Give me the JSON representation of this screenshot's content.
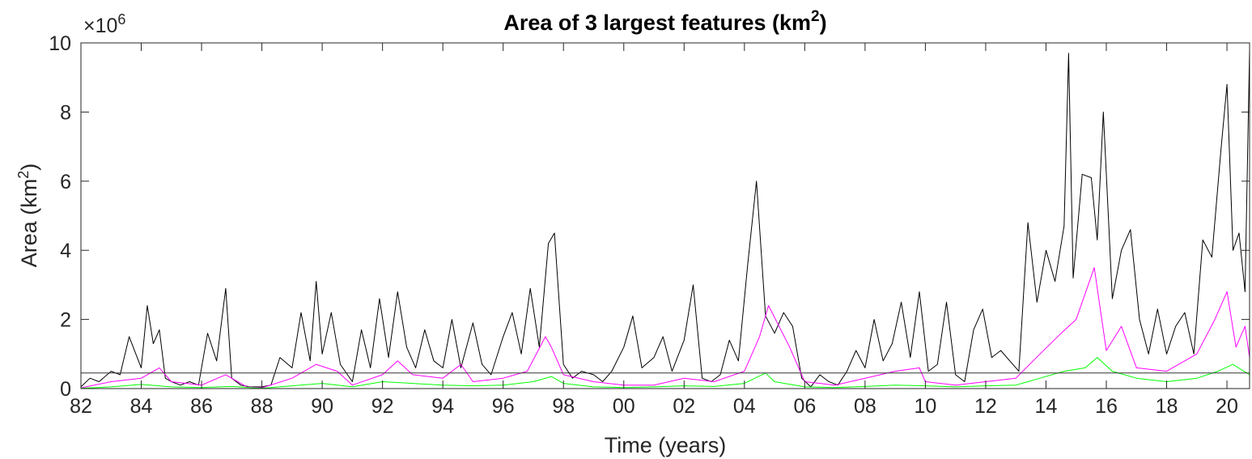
{
  "chart_data": {
    "type": "line",
    "title": "Area of 3 largest features (km",
    "title_superscript": "2",
    "title_suffix": ")",
    "xlabel": "Time (years)",
    "ylabel": "Area (km",
    "ylabel_superscript": "2",
    "ylabel_suffix": ")",
    "y_exponent_prefix": "×10",
    "y_exponent": "6",
    "xlim": [
      1982,
      2020.75
    ],
    "ylim": [
      0,
      10
    ],
    "x_ticks": [
      1982,
      1984,
      1986,
      1988,
      1990,
      1992,
      1994,
      1996,
      1998,
      2000,
      2002,
      2004,
      2006,
      2008,
      2010,
      2012,
      2014,
      2016,
      2018,
      2020
    ],
    "x_tick_labels": [
      "82",
      "84",
      "86",
      "88",
      "90",
      "92",
      "94",
      "96",
      "98",
      "00",
      "02",
      "04",
      "06",
      "08",
      "10",
      "12",
      "14",
      "16",
      "18",
      "20"
    ],
    "y_ticks": [
      0,
      2,
      4,
      6,
      8,
      10
    ],
    "y_tick_labels": [
      "0",
      "2",
      "4",
      "6",
      "8",
      "10"
    ],
    "threshold_line": 0.45,
    "grid": false,
    "legend": "none",
    "series": [
      {
        "color": "#000000",
        "x": [
          1982,
          1982.3,
          1982.6,
          1983,
          1983.3,
          1983.6,
          1984,
          1984.2,
          1984.4,
          1984.6,
          1984.8,
          1985,
          1985.3,
          1985.6,
          1985.9,
          1986.2,
          1986.5,
          1986.8,
          1987.0,
          1987.3,
          1987.6,
          1988,
          1988.3,
          1988.6,
          1989,
          1989.3,
          1989.6,
          1989.8,
          1990,
          1990.3,
          1990.6,
          1991,
          1991.3,
          1991.6,
          1991.9,
          1992.2,
          1992.5,
          1992.8,
          1993.1,
          1993.4,
          1993.7,
          1994,
          1994.3,
          1994.6,
          1995,
          1995.3,
          1995.6,
          1996,
          1996.3,
          1996.6,
          1996.9,
          1997.2,
          1997.5,
          1997.7,
          1998,
          1998.3,
          1998.6,
          1999,
          1999.3,
          1999.6,
          2000,
          2000.3,
          2000.6,
          2001,
          2001.3,
          2001.6,
          2002,
          2002.3,
          2002.6,
          2002.9,
          2003.2,
          2003.5,
          2003.8,
          2004.1,
          2004.4,
          2004.7,
          2005,
          2005.3,
          2005.6,
          2005.9,
          2006.2,
          2006.5,
          2006.8,
          2007.1,
          2007.4,
          2007.7,
          2008,
          2008.3,
          2008.6,
          2008.9,
          2009.2,
          2009.5,
          2009.8,
          2010.1,
          2010.4,
          2010.7,
          2011,
          2011.3,
          2011.6,
          2011.9,
          2012.2,
          2012.5,
          2012.8,
          2013.1,
          2013.4,
          2013.7,
          2014,
          2014.3,
          2014.6,
          2014.75,
          2014.9,
          2015.2,
          2015.5,
          2015.7,
          2015.9,
          2016.2,
          2016.5,
          2016.8,
          2017.1,
          2017.4,
          2017.7,
          2018,
          2018.3,
          2018.6,
          2018.9,
          2019.2,
          2019.5,
          2019.8,
          2020.0,
          2020.2,
          2020.4,
          2020.6,
          2020.75
        ],
        "y": [
          0.05,
          0.3,
          0.2,
          0.5,
          0.4,
          1.5,
          0.6,
          2.4,
          1.3,
          1.7,
          0.3,
          0.2,
          0.1,
          0.2,
          0.1,
          1.6,
          0.8,
          2.9,
          0.3,
          0.1,
          0.05,
          0.05,
          0.1,
          0.9,
          0.6,
          2.2,
          0.8,
          3.1,
          1.0,
          2.2,
          0.7,
          0.2,
          1.7,
          0.6,
          2.6,
          0.9,
          2.8,
          1.2,
          0.6,
          1.7,
          0.8,
          0.6,
          2.0,
          0.6,
          1.9,
          0.7,
          0.4,
          1.5,
          2.2,
          1.0,
          2.9,
          1.2,
          4.2,
          4.5,
          0.7,
          0.3,
          0.5,
          0.4,
          0.2,
          0.5,
          1.2,
          2.1,
          0.6,
          0.9,
          1.5,
          0.5,
          1.4,
          3.0,
          0.3,
          0.2,
          0.4,
          1.4,
          0.8,
          3.5,
          6.0,
          2.1,
          1.6,
          2.2,
          1.8,
          0.3,
          0.05,
          0.4,
          0.2,
          0.1,
          0.5,
          1.1,
          0.6,
          2.0,
          0.8,
          1.3,
          2.5,
          0.9,
          2.8,
          0.5,
          0.7,
          2.5,
          0.4,
          0.2,
          1.7,
          2.3,
          0.9,
          1.1,
          0.8,
          0.5,
          4.8,
          2.5,
          4.0,
          3.1,
          4.7,
          9.7,
          3.2,
          6.2,
          6.1,
          4.3,
          8.0,
          2.6,
          4.0,
          4.6,
          2.0,
          1.0,
          2.3,
          1.0,
          1.8,
          2.2,
          1.0,
          4.3,
          3.8,
          6.9,
          8.8,
          4.0,
          4.5,
          2.8,
          9.8
        ]
      },
      {
        "color": "#ff00ff",
        "x": [
          1982,
          1983,
          1984,
          1984.6,
          1985,
          1986,
          1986.8,
          1987.5,
          1988,
          1989,
          1989.8,
          1990.5,
          1991,
          1992,
          1992.5,
          1993,
          1994,
          1994.6,
          1995,
          1996,
          1996.8,
          1997.4,
          1997.6,
          1998,
          1999,
          2000,
          2001,
          2002,
          2003,
          2004,
          2004.5,
          2004.8,
          2005.5,
          2006,
          2007,
          2008,
          2009,
          2009.8,
          2010,
          2011,
          2012,
          2013,
          2013.8,
          2014.5,
          2015.0,
          2015.6,
          2016,
          2016.5,
          2017,
          2018,
          2019,
          2019.6,
          2020,
          2020.3,
          2020.6,
          2020.75
        ],
        "y": [
          0.02,
          0.2,
          0.3,
          0.6,
          0.2,
          0.1,
          0.4,
          0.05,
          0.02,
          0.3,
          0.7,
          0.5,
          0.1,
          0.4,
          0.8,
          0.4,
          0.3,
          0.7,
          0.2,
          0.3,
          0.5,
          1.5,
          1.2,
          0.4,
          0.2,
          0.1,
          0.1,
          0.3,
          0.2,
          0.5,
          1.5,
          2.4,
          1.2,
          0.2,
          0.1,
          0.3,
          0.5,
          0.6,
          0.2,
          0.1,
          0.2,
          0.3,
          1.0,
          1.6,
          2.0,
          3.5,
          1.1,
          1.8,
          0.6,
          0.5,
          1.0,
          2.0,
          2.8,
          1.2,
          1.8,
          0.9
        ]
      },
      {
        "color": "#00ff00",
        "x": [
          1982,
          1983,
          1984,
          1985,
          1986,
          1987,
          1988,
          1989,
          1990,
          1991,
          1992,
          1993,
          1994,
          1995,
          1996,
          1997,
          1997.6,
          1998,
          1999,
          2000,
          2001,
          2002,
          2003,
          2004,
          2004.7,
          2005,
          2006,
          2007,
          2008,
          2009,
          2010,
          2011,
          2012,
          2013,
          2013.8,
          2014.6,
          2015.3,
          2015.7,
          2016.2,
          2017,
          2018,
          2019,
          2019.7,
          2020.2,
          2020.75
        ],
        "y": [
          0.01,
          0.05,
          0.12,
          0.05,
          0.03,
          0.06,
          0.01,
          0.08,
          0.15,
          0.05,
          0.2,
          0.15,
          0.1,
          0.08,
          0.1,
          0.2,
          0.35,
          0.15,
          0.05,
          0.03,
          0.05,
          0.08,
          0.06,
          0.15,
          0.45,
          0.2,
          0.05,
          0.03,
          0.06,
          0.1,
          0.08,
          0.05,
          0.08,
          0.1,
          0.3,
          0.5,
          0.6,
          0.9,
          0.5,
          0.3,
          0.2,
          0.3,
          0.5,
          0.7,
          0.4
        ]
      }
    ]
  }
}
